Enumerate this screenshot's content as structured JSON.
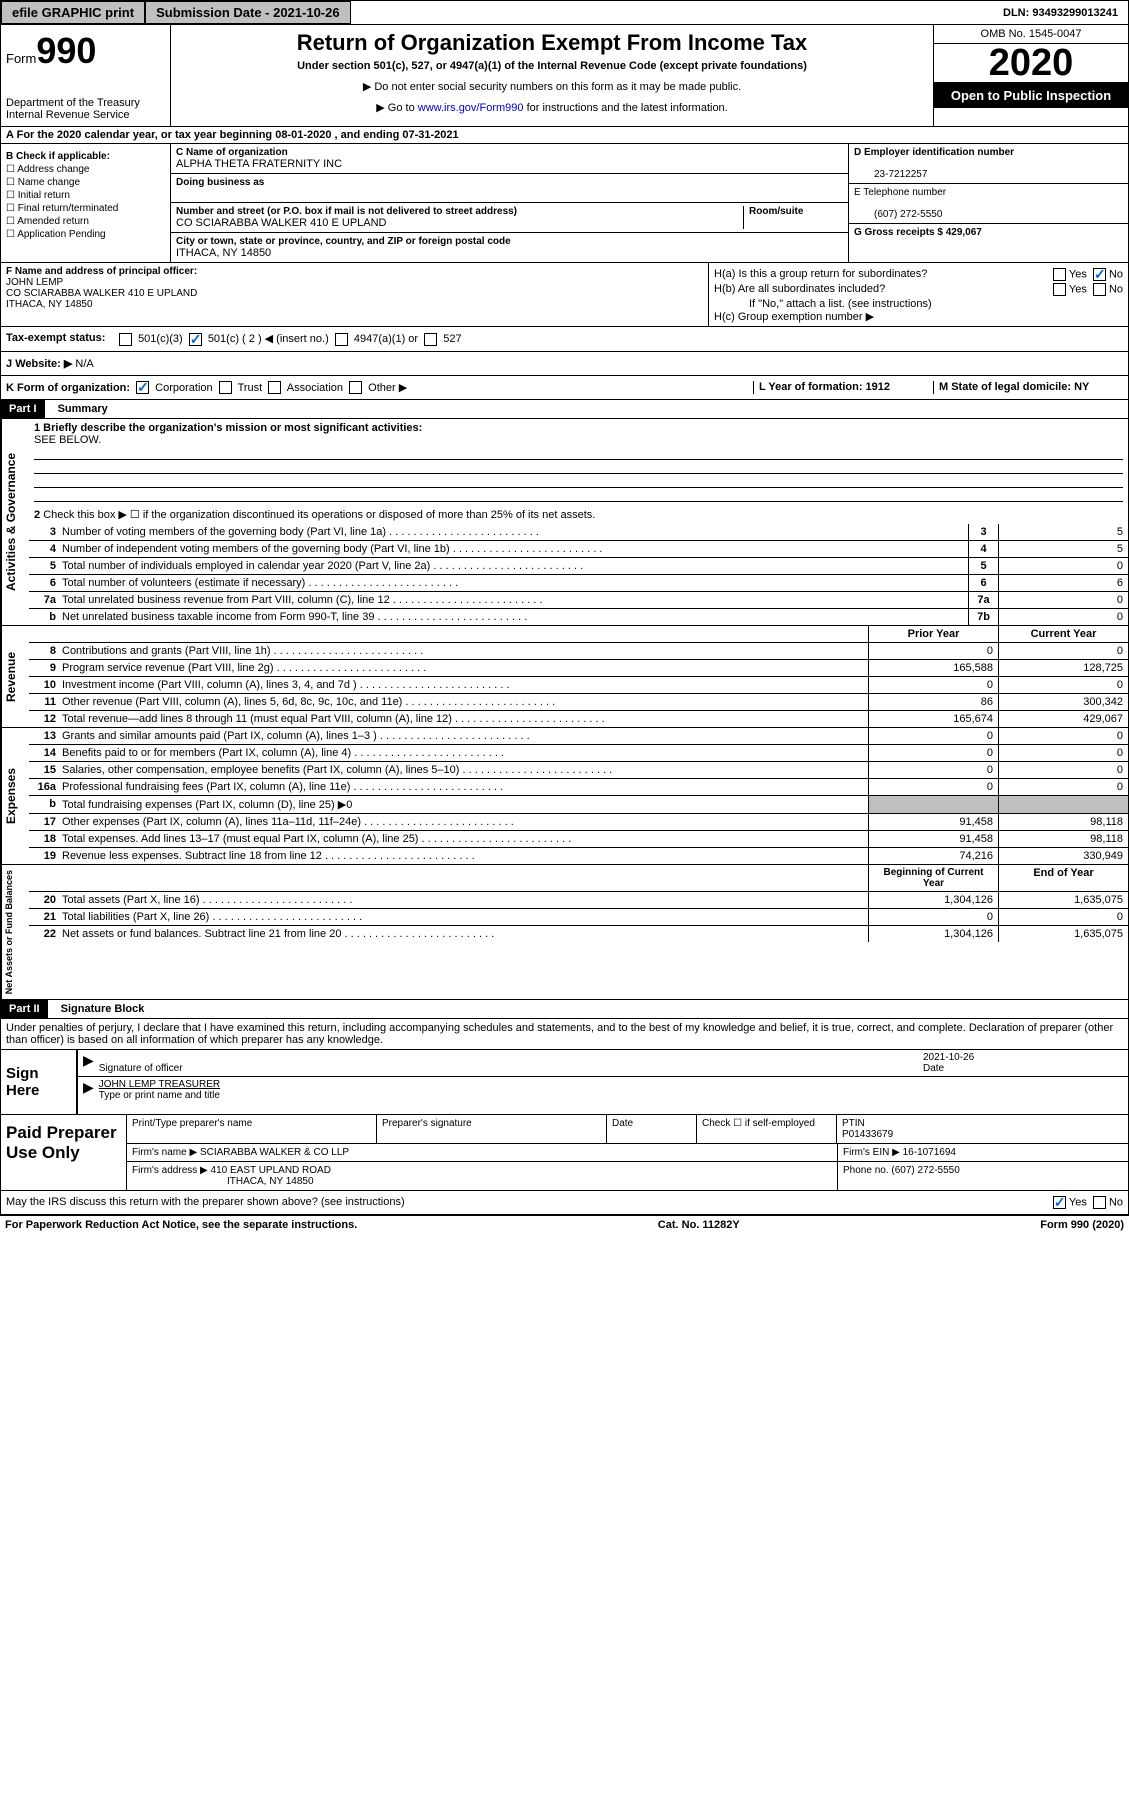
{
  "topbar": {
    "efile": "efile GRAPHIC print",
    "sub_label": "Submission Date - 2021-10-26",
    "dln": "DLN: 93493299013241"
  },
  "header": {
    "form_label": "Form",
    "form_num": "990",
    "dept": "Department of the Treasury",
    "irs": "Internal Revenue Service",
    "title": "Return of Organization Exempt From Income Tax",
    "sub": "Under section 501(c), 527, or 4947(a)(1) of the Internal Revenue Code (except private foundations)",
    "note1": "▶ Do not enter social security numbers on this form as it may be made public.",
    "note2_pre": "▶ Go to ",
    "note2_link": "www.irs.gov/Form990",
    "note2_post": " for instructions and the latest information.",
    "omb": "OMB No. 1545-0047",
    "year": "2020",
    "inspect": "Open to Public Inspection"
  },
  "lineA": "For the 2020 calendar year, or tax year beginning 08-01-2020    , and ending 07-31-2021",
  "boxB": {
    "hdr": "B Check if applicable:",
    "addr": "Address change",
    "name": "Name change",
    "init": "Initial return",
    "final": "Final return/terminated",
    "amend": "Amended return",
    "app": "Application Pending"
  },
  "boxC": {
    "name_lbl": "C Name of organization",
    "name_val": "ALPHA THETA FRATERNITY INC",
    "dba_lbl": "Doing business as",
    "street_lbl": "Number and street (or P.O. box if mail is not delivered to street address)",
    "room_lbl": "Room/suite",
    "street_val": "CO SCIARABBA WALKER 410 E UPLAND",
    "city_lbl": "City or town, state or province, country, and ZIP or foreign postal code",
    "city_val": "ITHACA, NY  14850"
  },
  "boxD": {
    "lbl": "D Employer identification number",
    "val": "23-7212257"
  },
  "boxE": {
    "lbl": "E Telephone number",
    "val": "(607) 272-5550"
  },
  "boxG": {
    "lbl": "G Gross receipts $ 429,067"
  },
  "boxF": {
    "lbl": "F  Name and address of principal officer:",
    "name": "JOHN LEMP",
    "addr1": "CO SCIARABBA WALKER 410 E UPLAND",
    "addr2": "ITHACA, NY  14850"
  },
  "boxH": {
    "ha": "H(a)  Is this a group return for subordinates?",
    "hb": "H(b)  Are all subordinates included?",
    "hb_note": "If \"No,\" attach a list. (see instructions)",
    "hc": "H(c)  Group exemption number ▶",
    "yes": "Yes",
    "no": "No"
  },
  "boxI": {
    "lbl": "Tax-exempt status:",
    "c3": "501(c)(3)",
    "c": "501(c) ( 2 ) ◀ (insert no.)",
    "a1": "4947(a)(1) or",
    "c527": "527"
  },
  "boxJ": {
    "lbl": "Website: ▶",
    "val": "N/A"
  },
  "boxK": {
    "lbl": "K Form of organization:",
    "corp": "Corporation",
    "trust": "Trust",
    "assoc": "Association",
    "other": "Other ▶"
  },
  "boxL": {
    "lbl": "L Year of formation: 1912"
  },
  "boxM": {
    "lbl": "M State of legal domicile: NY"
  },
  "part1": {
    "hdr": "Part I",
    "title": "Summary"
  },
  "summary": {
    "q1": "1  Briefly describe the organization's mission or most significant activities:",
    "q1v": "SEE BELOW.",
    "q2": "Check this box ▶ ☐ if the organization discontinued its operations or disposed of more than 25% of its net assets.",
    "rows": [
      {
        "n": "3",
        "d": "Number of voting members of the governing body (Part VI, line 1a)",
        "b": "3",
        "v": "5"
      },
      {
        "n": "4",
        "d": "Number of independent voting members of the governing body (Part VI, line 1b)",
        "b": "4",
        "v": "5"
      },
      {
        "n": "5",
        "d": "Total number of individuals employed in calendar year 2020 (Part V, line 2a)",
        "b": "5",
        "v": "0"
      },
      {
        "n": "6",
        "d": "Total number of volunteers (estimate if necessary)",
        "b": "6",
        "v": "6"
      },
      {
        "n": "7a",
        "d": "Total unrelated business revenue from Part VIII, column (C), line 12",
        "b": "7a",
        "v": "0"
      },
      {
        "n": "b",
        "d": "Net unrelated business taxable income from Form 990-T, line 39",
        "b": "7b",
        "v": "0"
      }
    ],
    "prior": "Prior Year",
    "current": "Current Year",
    "begin": "Beginning of Current Year",
    "end": "End of Year",
    "revenue": [
      {
        "n": "8",
        "d": "Contributions and grants (Part VIII, line 1h)",
        "p": "0",
        "c": "0"
      },
      {
        "n": "9",
        "d": "Program service revenue (Part VIII, line 2g)",
        "p": "165,588",
        "c": "128,725"
      },
      {
        "n": "10",
        "d": "Investment income (Part VIII, column (A), lines 3, 4, and 7d )",
        "p": "0",
        "c": "0"
      },
      {
        "n": "11",
        "d": "Other revenue (Part VIII, column (A), lines 5, 6d, 8c, 9c, 10c, and 11e)",
        "p": "86",
        "c": "300,342"
      },
      {
        "n": "12",
        "d": "Total revenue—add lines 8 through 11 (must equal Part VIII, column (A), line 12)",
        "p": "165,674",
        "c": "429,067"
      }
    ],
    "expenses": [
      {
        "n": "13",
        "d": "Grants and similar amounts paid (Part IX, column (A), lines 1–3 )",
        "p": "0",
        "c": "0"
      },
      {
        "n": "14",
        "d": "Benefits paid to or for members (Part IX, column (A), line 4)",
        "p": "0",
        "c": "0"
      },
      {
        "n": "15",
        "d": "Salaries, other compensation, employee benefits (Part IX, column (A), lines 5–10)",
        "p": "0",
        "c": "0"
      },
      {
        "n": "16a",
        "d": "Professional fundraising fees (Part IX, column (A), line 11e)",
        "p": "0",
        "c": "0"
      },
      {
        "n": "b",
        "d": "Total fundraising expenses (Part IX, column (D), line 25) ▶0",
        "p": "",
        "c": "",
        "grey": true
      },
      {
        "n": "17",
        "d": "Other expenses (Part IX, column (A), lines 11a–11d, 11f–24e)",
        "p": "91,458",
        "c": "98,118"
      },
      {
        "n": "18",
        "d": "Total expenses. Add lines 13–17 (must equal Part IX, column (A), line 25)",
        "p": "91,458",
        "c": "98,118"
      },
      {
        "n": "19",
        "d": "Revenue less expenses. Subtract line 18 from line 12",
        "p": "74,216",
        "c": "330,949"
      }
    ],
    "netassets": [
      {
        "n": "20",
        "d": "Total assets (Part X, line 16)",
        "p": "1,304,126",
        "c": "1,635,075"
      },
      {
        "n": "21",
        "d": "Total liabilities (Part X, line 26)",
        "p": "0",
        "c": "0"
      },
      {
        "n": "22",
        "d": "Net assets or fund balances. Subtract line 21 from line 20",
        "p": "1,304,126",
        "c": "1,635,075"
      }
    ]
  },
  "sides": {
    "gov": "Activities & Governance",
    "rev": "Revenue",
    "exp": "Expenses",
    "net": "Net Assets or Fund Balances"
  },
  "part2": {
    "hdr": "Part II",
    "title": "Signature Block",
    "perjury": "Under penalties of perjury, I declare that I have examined this return, including accompanying schedules and statements, and to the best of my knowledge and belief, it is true, correct, and complete. Declaration of preparer (other than officer) is based on all information of which preparer has any knowledge."
  },
  "sign": {
    "here": "Sign Here",
    "sig_lbl": "Signature of officer",
    "date_lbl": "Date",
    "date_val": "2021-10-26",
    "name": "JOHN LEMP  TREASURER",
    "name_lbl": "Type or print name and title"
  },
  "paid": {
    "title": "Paid Preparer Use Only",
    "print_lbl": "Print/Type preparer's name",
    "sig_lbl": "Preparer's signature",
    "date_lbl": "Date",
    "check_lbl": "Check ☐ if self-employed",
    "ptin_lbl": "PTIN",
    "ptin_val": "P01433679",
    "firm_name_lbl": "Firm's name    ▶",
    "firm_name": "SCIARABBA WALKER & CO LLP",
    "firm_ein_lbl": "Firm's EIN ▶",
    "firm_ein": "16-1071694",
    "firm_addr_lbl": "Firm's address ▶",
    "firm_addr1": "410 EAST UPLAND ROAD",
    "firm_addr2": "ITHACA, NY  14850",
    "phone_lbl": "Phone no.",
    "phone": "(607) 272-5550"
  },
  "discuss": "May the IRS discuss this return with the preparer shown above? (see instructions)",
  "footer": {
    "pra": "For Paperwork Reduction Act Notice, see the separate instructions.",
    "cat": "Cat. No. 11282Y",
    "form": "Form 990 (2020)"
  }
}
